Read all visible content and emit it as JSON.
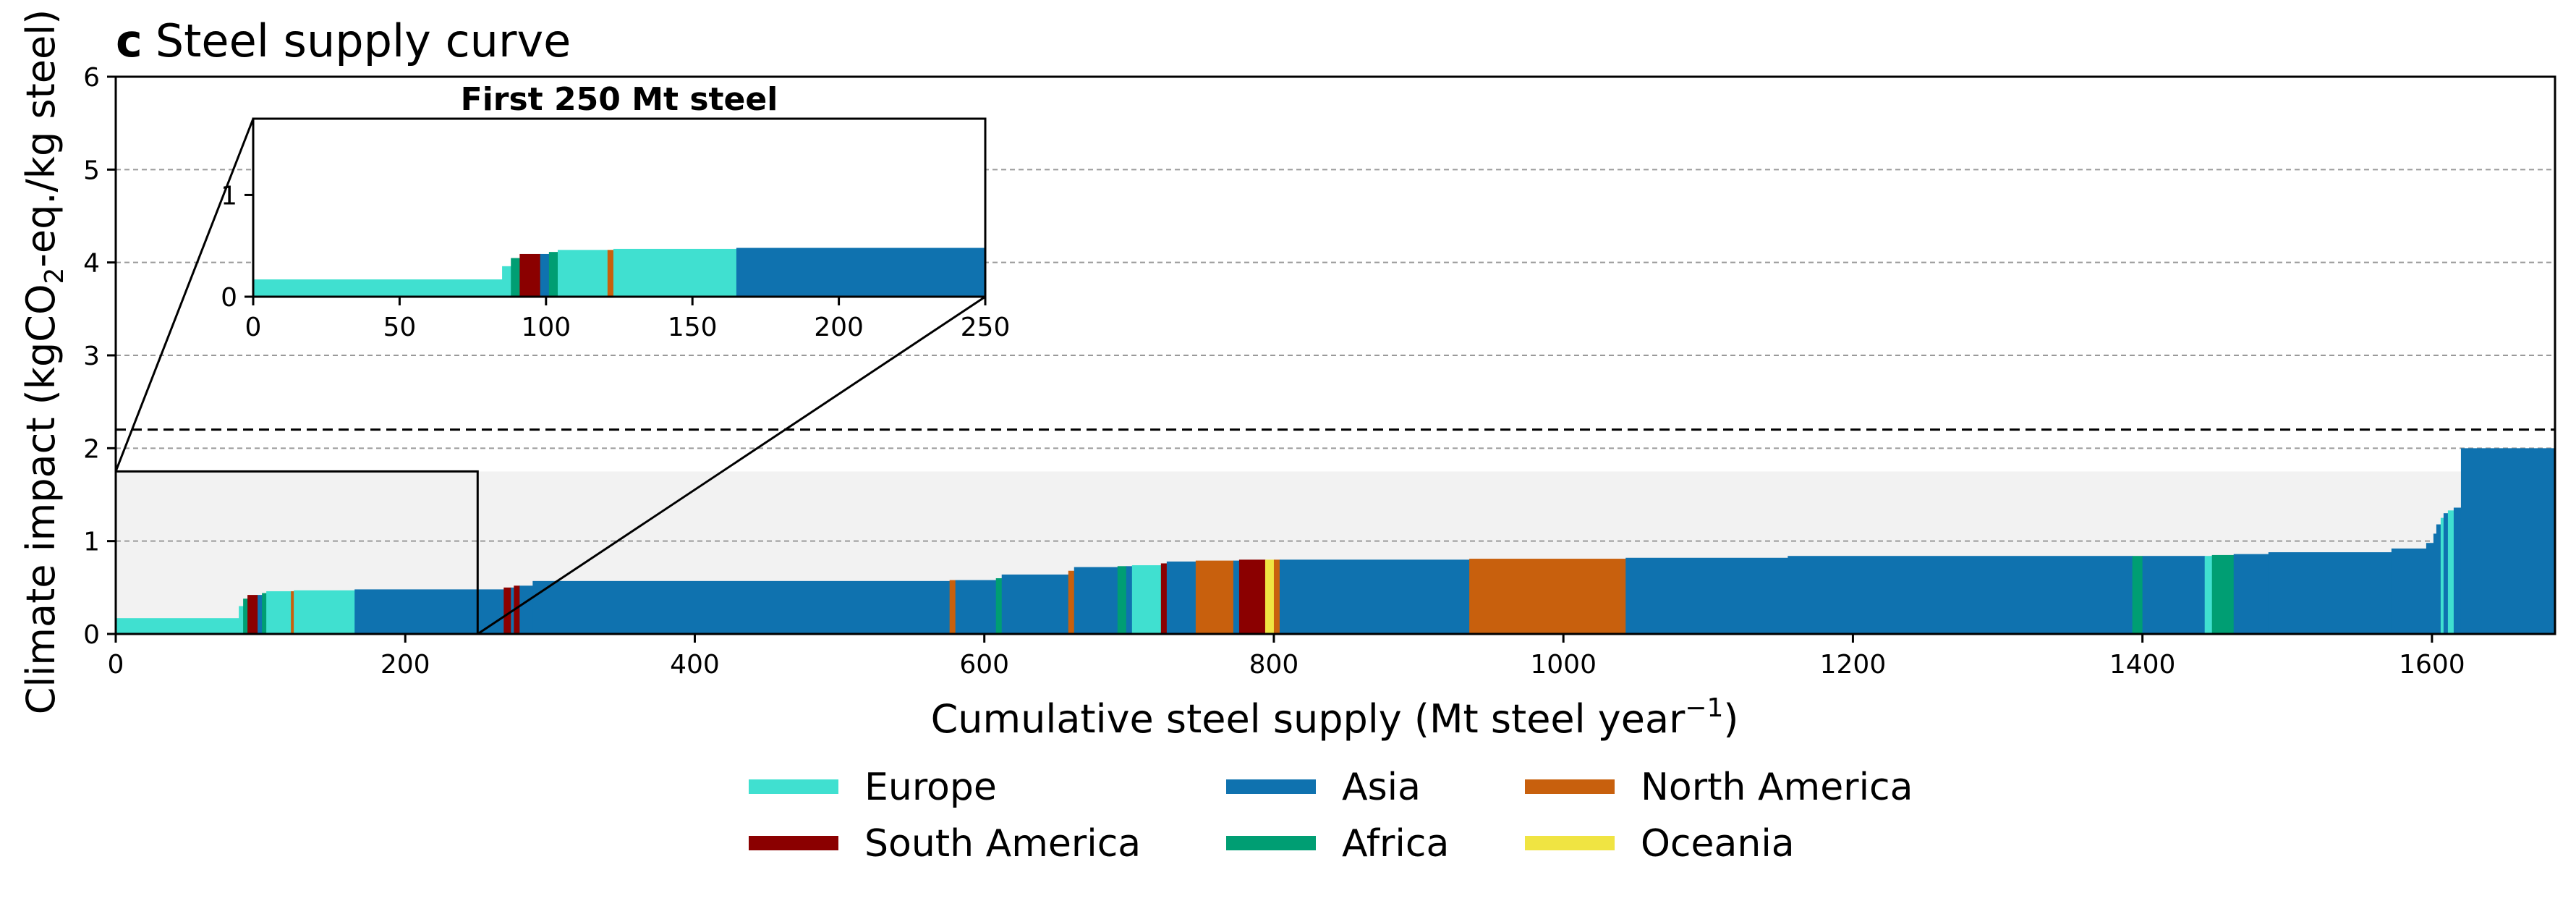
{
  "chart_data": {
    "type": "area",
    "panel_letter": "c",
    "title": "Steel supply curve",
    "xlabel": "Cumulative steel supply (Mt steel year",
    "xlabel_sup": "−1",
    "xlabel_end": ")",
    "ylabel": "Climate impact (kgCO",
    "ylabel_sub": "2",
    "ylabel_end": "-eq./kg steel)",
    "xlim": [
      0,
      1685
    ],
    "ylim": [
      0,
      6
    ],
    "x_ticks": [
      0,
      200,
      400,
      600,
      800,
      1000,
      1200,
      1400,
      1600
    ],
    "y_ticks": [
      0,
      1,
      2,
      3,
      4,
      5,
      6
    ],
    "grid": "horizontal-dashed",
    "threshold_line": 2.2,
    "shaded_band": [
      0,
      1.75
    ],
    "zoom_box": {
      "x": [
        0,
        250
      ],
      "y": [
        0,
        1.75
      ]
    },
    "inset": {
      "title": "First 250 Mt steel",
      "xlim": [
        0,
        250
      ],
      "ylim": [
        0,
        1.75
      ],
      "x_ticks": [
        0,
        50,
        100,
        150,
        200,
        250
      ],
      "y_ticks": [
        0,
        1
      ]
    },
    "legend": {
      "placement": "bottom-center",
      "entries": [
        {
          "name": "Europe",
          "color": "#40E0D0"
        },
        {
          "name": "South America",
          "color": "#8B0000"
        },
        {
          "name": "Asia",
          "color": "#0F72AF"
        },
        {
          "name": "Africa",
          "color": "#009E73"
        },
        {
          "name": "North America",
          "color": "#C8600D"
        },
        {
          "name": "Oceania",
          "color": "#F0E442"
        }
      ]
    },
    "region_colors": {
      "Europe": "#40E0D0",
      "South America": "#8B0000",
      "Asia": "#0F72AF",
      "Africa": "#009E73",
      "North America": "#C8600D",
      "Oceania": "#F0E442"
    },
    "segments": [
      {
        "x0": 0,
        "x1": 85,
        "y": 0.17,
        "region": "Europe"
      },
      {
        "x0": 85,
        "x1": 88,
        "y": 0.3,
        "region": "Europe"
      },
      {
        "x0": 88,
        "x1": 91,
        "y": 0.38,
        "region": "Africa"
      },
      {
        "x0": 91,
        "x1": 98,
        "y": 0.42,
        "region": "South America"
      },
      {
        "x0": 98,
        "x1": 101,
        "y": 0.42,
        "region": "Asia"
      },
      {
        "x0": 101,
        "x1": 104,
        "y": 0.44,
        "region": "Africa"
      },
      {
        "x0": 104,
        "x1": 121,
        "y": 0.46,
        "region": "Europe"
      },
      {
        "x0": 121,
        "x1": 123,
        "y": 0.46,
        "region": "North America"
      },
      {
        "x0": 123,
        "x1": 165,
        "y": 0.47,
        "region": "Europe"
      },
      {
        "x0": 165,
        "x1": 268,
        "y": 0.48,
        "region": "Asia"
      },
      {
        "x0": 268,
        "x1": 273,
        "y": 0.5,
        "region": "South America"
      },
      {
        "x0": 273,
        "x1": 275,
        "y": 0.5,
        "region": "Asia"
      },
      {
        "x0": 275,
        "x1": 279,
        "y": 0.52,
        "region": "South America"
      },
      {
        "x0": 279,
        "x1": 288,
        "y": 0.52,
        "region": "Asia"
      },
      {
        "x0": 288,
        "x1": 576,
        "y": 0.57,
        "region": "Asia"
      },
      {
        "x0": 576,
        "x1": 580,
        "y": 0.58,
        "region": "North America"
      },
      {
        "x0": 580,
        "x1": 608,
        "y": 0.58,
        "region": "Asia"
      },
      {
        "x0": 608,
        "x1": 612,
        "y": 0.6,
        "region": "Africa"
      },
      {
        "x0": 612,
        "x1": 658,
        "y": 0.64,
        "region": "Asia"
      },
      {
        "x0": 658,
        "x1": 662,
        "y": 0.68,
        "region": "North America"
      },
      {
        "x0": 662,
        "x1": 692,
        "y": 0.72,
        "region": "Asia"
      },
      {
        "x0": 692,
        "x1": 698,
        "y": 0.73,
        "region": "Africa"
      },
      {
        "x0": 698,
        "x1": 702,
        "y": 0.73,
        "region": "Asia"
      },
      {
        "x0": 702,
        "x1": 722,
        "y": 0.74,
        "region": "Europe"
      },
      {
        "x0": 722,
        "x1": 726,
        "y": 0.76,
        "region": "South America"
      },
      {
        "x0": 726,
        "x1": 746,
        "y": 0.78,
        "region": "Asia"
      },
      {
        "x0": 746,
        "x1": 772,
        "y": 0.79,
        "region": "North America"
      },
      {
        "x0": 772,
        "x1": 776,
        "y": 0.79,
        "region": "Asia"
      },
      {
        "x0": 776,
        "x1": 794,
        "y": 0.8,
        "region": "South America"
      },
      {
        "x0": 794,
        "x1": 800,
        "y": 0.8,
        "region": "Oceania"
      },
      {
        "x0": 800,
        "x1": 804,
        "y": 0.8,
        "region": "North America"
      },
      {
        "x0": 804,
        "x1": 935,
        "y": 0.8,
        "region": "Asia"
      },
      {
        "x0": 935,
        "x1": 1043,
        "y": 0.81,
        "region": "North America"
      },
      {
        "x0": 1043,
        "x1": 1155,
        "y": 0.82,
        "region": "Asia"
      },
      {
        "x0": 1155,
        "x1": 1393,
        "y": 0.84,
        "region": "Asia"
      },
      {
        "x0": 1393,
        "x1": 1400,
        "y": 0.84,
        "region": "Africa"
      },
      {
        "x0": 1400,
        "x1": 1443,
        "y": 0.84,
        "region": "Asia"
      },
      {
        "x0": 1443,
        "x1": 1448,
        "y": 0.84,
        "region": "Europe"
      },
      {
        "x0": 1448,
        "x1": 1463,
        "y": 0.85,
        "region": "Africa"
      },
      {
        "x0": 1463,
        "x1": 1487,
        "y": 0.86,
        "region": "Asia"
      },
      {
        "x0": 1487,
        "x1": 1572,
        "y": 0.88,
        "region": "Asia"
      },
      {
        "x0": 1572,
        "x1": 1596,
        "y": 0.92,
        "region": "Asia"
      },
      {
        "x0": 1596,
        "x1": 1601,
        "y": 0.98,
        "region": "Asia"
      },
      {
        "x0": 1601,
        "x1": 1603,
        "y": 1.08,
        "region": "Asia"
      },
      {
        "x0": 1603,
        "x1": 1606,
        "y": 1.18,
        "region": "Asia"
      },
      {
        "x0": 1606,
        "x1": 1608,
        "y": 1.25,
        "region": "Europe"
      },
      {
        "x0": 1608,
        "x1": 1611,
        "y": 1.3,
        "region": "Asia"
      },
      {
        "x0": 1611,
        "x1": 1615,
        "y": 1.33,
        "region": "Europe"
      },
      {
        "x0": 1615,
        "x1": 1620,
        "y": 1.36,
        "region": "Asia"
      },
      {
        "x0": 1620,
        "x1": 1685,
        "y": 2.0,
        "region": "Asia"
      }
    ]
  }
}
